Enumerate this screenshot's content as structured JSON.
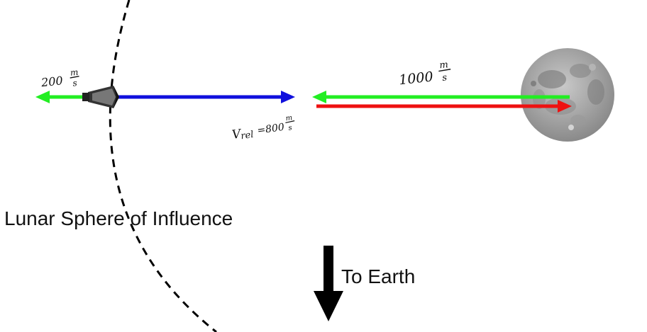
{
  "diagram": {
    "soi_label": "Lunar Sphere of Influence",
    "earth_label": "To Earth",
    "spacecraft_speed": {
      "value": "200",
      "num": "m",
      "den": "s"
    },
    "moon_speed": {
      "value": "1000",
      "num": "m",
      "den": "s"
    },
    "relative_speed": {
      "prefix": "V",
      "sub": "rel",
      "equals": "=800",
      "num": "m",
      "den": "s"
    },
    "colors": {
      "spacecraft_velocity": "#22ee22",
      "relative_velocity": "#1010dd",
      "moon_velocity_green": "#22ee22",
      "moon_velocity_red": "#ee1111",
      "earth_arrow": "#000000",
      "soi_boundary": "#000000"
    }
  }
}
